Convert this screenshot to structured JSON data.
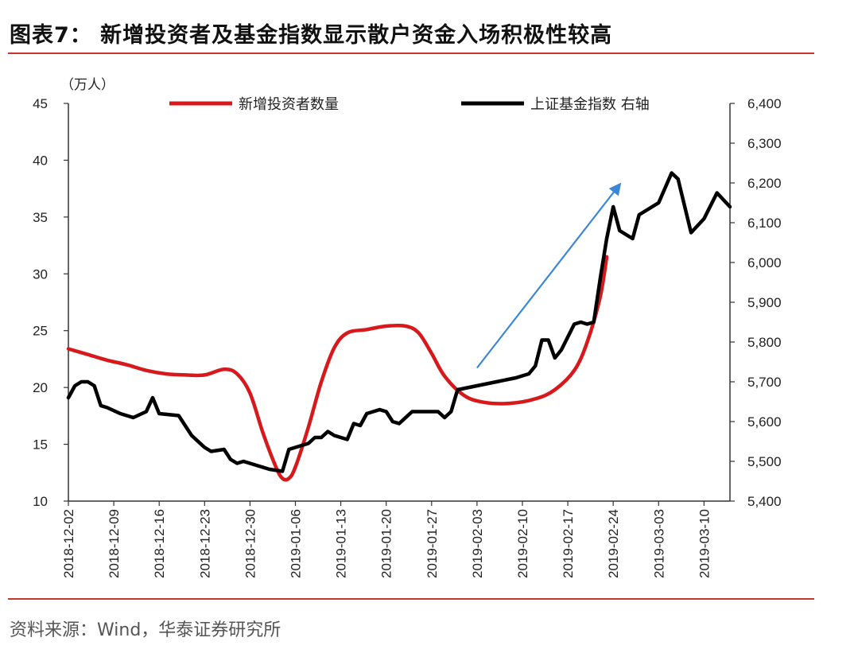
{
  "title": "图表7：  新增投资者及基金指数显示散户资金入场积极性较高",
  "source": "资料来源：Wind，华泰证券研究所",
  "chart_data": {
    "type": "line",
    "title": "图表7：  新增投资者及基金指数显示散户资金入场积极性较高",
    "y_left_unit": "（万人）",
    "y_left_lim": [
      10,
      45
    ],
    "y_left_ticks": [
      "45",
      "40",
      "35",
      "30",
      "25",
      "20",
      "15",
      "10"
    ],
    "y_right_lim": [
      5400,
      6400
    ],
    "y_right_ticks": [
      "6,400",
      "6,300",
      "6,200",
      "6,100",
      "6,000",
      "5,900",
      "5,800",
      "5,700",
      "5,600",
      "5,500",
      "5,400"
    ],
    "x_ticks": [
      "2018-12-02",
      "2018-12-09",
      "2018-12-16",
      "2018-12-23",
      "2018-12-30",
      "2019-01-06",
      "2019-01-13",
      "2019-01-20",
      "2019-01-27",
      "2019-02-03",
      "2019-02-10",
      "2019-02-17",
      "2019-02-24",
      "2019-03-03",
      "2019-03-10"
    ],
    "x_start": "2018-12-02",
    "x_end": "2019-03-14",
    "legend": "top",
    "grid": false,
    "colors": {
      "investors": "#d7191c",
      "index": "#000000",
      "arrow": "#3a87d6"
    },
    "series": [
      {
        "name": "新增投资者数量",
        "axis": "left",
        "points": [
          [
            "2018-12-02",
            23.4
          ],
          [
            "2018-12-05",
            22.9
          ],
          [
            "2018-12-08",
            22.4
          ],
          [
            "2018-12-11",
            22.0
          ],
          [
            "2018-12-14",
            21.5
          ],
          [
            "2018-12-17",
            21.2
          ],
          [
            "2018-12-20",
            21.1
          ],
          [
            "2018-12-23",
            21.1
          ],
          [
            "2018-12-26",
            21.6
          ],
          [
            "2018-12-28",
            21.2
          ],
          [
            "2018-12-30",
            19.5
          ],
          [
            "2019-01-01",
            16.0
          ],
          [
            "2019-01-03",
            13.0
          ],
          [
            "2019-01-04",
            12.0
          ],
          [
            "2019-01-05",
            12.0
          ],
          [
            "2019-01-06",
            13.0
          ],
          [
            "2019-01-08",
            16.5
          ],
          [
            "2019-01-10",
            20.5
          ],
          [
            "2019-01-12",
            23.5
          ],
          [
            "2019-01-14",
            24.8
          ],
          [
            "2019-01-17",
            25.1
          ],
          [
            "2019-01-20",
            25.4
          ],
          [
            "2019-01-23",
            25.4
          ],
          [
            "2019-01-25",
            24.8
          ],
          [
            "2019-01-27",
            23.0
          ],
          [
            "2019-01-29",
            21.0
          ],
          [
            "2019-02-01",
            19.3
          ],
          [
            "2019-02-04",
            18.7
          ],
          [
            "2019-02-08",
            18.6
          ],
          [
            "2019-02-12",
            19.0
          ],
          [
            "2019-02-15",
            19.8
          ],
          [
            "2019-02-18",
            21.5
          ],
          [
            "2019-02-20",
            24.0
          ],
          [
            "2019-02-22",
            28.0
          ],
          [
            "2019-02-23",
            31.5
          ]
        ]
      },
      {
        "name": "上证基金指数  右轴",
        "axis": "right",
        "points": [
          [
            "2018-12-02",
            5660
          ],
          [
            "2018-12-03",
            5690
          ],
          [
            "2018-12-04",
            5700
          ],
          [
            "2018-12-05",
            5700
          ],
          [
            "2018-12-06",
            5690
          ],
          [
            "2018-12-07",
            5640
          ],
          [
            "2018-12-08",
            5635
          ],
          [
            "2018-12-10",
            5620
          ],
          [
            "2018-12-12",
            5610
          ],
          [
            "2018-12-14",
            5625
          ],
          [
            "2018-12-15",
            5660
          ],
          [
            "2018-12-16",
            5620
          ],
          [
            "2018-12-19",
            5615
          ],
          [
            "2018-12-21",
            5565
          ],
          [
            "2018-12-23",
            5535
          ],
          [
            "2018-12-24",
            5525
          ],
          [
            "2018-12-26",
            5530
          ],
          [
            "2018-12-27",
            5505
          ],
          [
            "2018-12-28",
            5495
          ],
          [
            "2018-12-29",
            5500
          ],
          [
            "2018-12-31",
            5490
          ],
          [
            "2019-01-02",
            5480
          ],
          [
            "2019-01-04",
            5475
          ],
          [
            "2019-01-05",
            5530
          ],
          [
            "2019-01-07",
            5540
          ],
          [
            "2019-01-08",
            5545
          ],
          [
            "2019-01-09",
            5560
          ],
          [
            "2019-01-10",
            5560
          ],
          [
            "2019-01-11",
            5575
          ],
          [
            "2019-01-12",
            5565
          ],
          [
            "2019-01-14",
            5555
          ],
          [
            "2019-01-15",
            5595
          ],
          [
            "2019-01-16",
            5590
          ],
          [
            "2019-01-17",
            5620
          ],
          [
            "2019-01-19",
            5630
          ],
          [
            "2019-01-20",
            5625
          ],
          [
            "2019-01-21",
            5600
          ],
          [
            "2019-01-22",
            5595
          ],
          [
            "2019-01-24",
            5625
          ],
          [
            "2019-01-26",
            5625
          ],
          [
            "2019-01-28",
            5625
          ],
          [
            "2019-01-29",
            5610
          ],
          [
            "2019-01-30",
            5625
          ],
          [
            "2019-01-31",
            5680
          ],
          [
            "2019-02-03",
            5690
          ],
          [
            "2019-02-06",
            5700
          ],
          [
            "2019-02-09",
            5710
          ],
          [
            "2019-02-11",
            5720
          ],
          [
            "2019-02-12",
            5740
          ],
          [
            "2019-02-13",
            5805
          ],
          [
            "2019-02-14",
            5805
          ],
          [
            "2019-02-15",
            5760
          ],
          [
            "2019-02-16",
            5780
          ],
          [
            "2019-02-18",
            5845
          ],
          [
            "2019-02-19",
            5850
          ],
          [
            "2019-02-20",
            5845
          ],
          [
            "2019-02-21",
            5850
          ],
          [
            "2019-02-22",
            5960
          ],
          [
            "2019-02-23",
            6060
          ],
          [
            "2019-02-24",
            6140
          ],
          [
            "2019-02-25",
            6080
          ],
          [
            "2019-02-27",
            6060
          ],
          [
            "2019-02-28",
            6120
          ],
          [
            "2019-03-03",
            6150
          ],
          [
            "2019-03-05",
            6225
          ],
          [
            "2019-03-06",
            6210
          ],
          [
            "2019-03-08",
            6075
          ],
          [
            "2019-03-10",
            6110
          ],
          [
            "2019-03-12",
            6175
          ],
          [
            "2019-03-14",
            6140
          ]
        ]
      }
    ],
    "annotations": [
      {
        "type": "arrow",
        "from": [
          "2019-02-03",
          5735
        ],
        "to": [
          "2019-02-25",
          6196
        ],
        "axis": "right"
      }
    ]
  }
}
